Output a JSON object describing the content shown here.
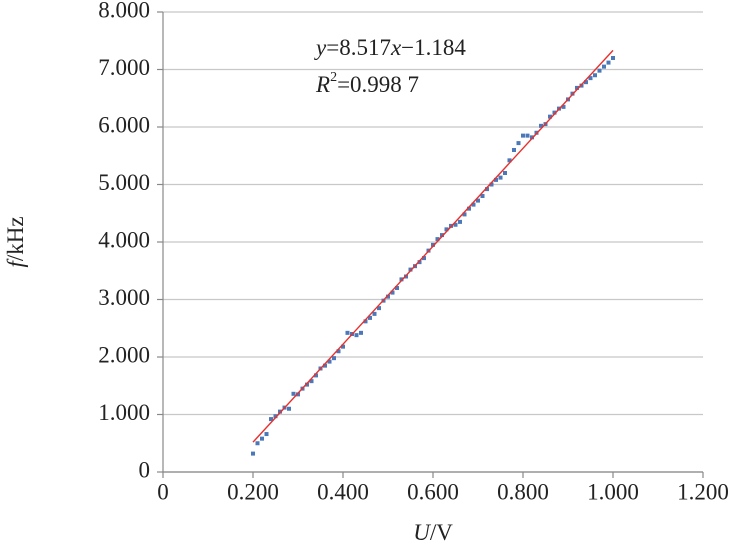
{
  "chart_data": {
    "type": "scatter",
    "x_label": {
      "italic": "U",
      "rest": "/V"
    },
    "y_label": {
      "italic": "f",
      "rest": "/kHz"
    },
    "equation": {
      "y": "y",
      "coef": "=8.517",
      "x": "x",
      "const": "−1.184"
    },
    "r_squared": {
      "r": "R",
      "sup": "2",
      "value": "=0.998 7"
    },
    "xlim": [
      0,
      1.2
    ],
    "ylim": [
      0,
      8
    ],
    "xticks": [
      0,
      {
        "value": 0.2,
        "label": "0.200"
      },
      {
        "value": 0.4,
        "label": "0.400"
      },
      {
        "value": 0.6,
        "label": "0.600"
      },
      {
        "value": 0.8,
        "label": "0.800"
      },
      {
        "value": 1.0,
        "label": "1.000"
      },
      {
        "value": 1.2,
        "label": "1.200"
      }
    ],
    "yticks": [
      0,
      {
        "value": 1,
        "label": "1.000"
      },
      {
        "value": 2,
        "label": "2.000"
      },
      {
        "value": 3,
        "label": "3.000"
      },
      {
        "value": 4,
        "label": "4.000"
      },
      {
        "value": 5,
        "label": "5.000"
      },
      {
        "value": 6,
        "label": "6.000"
      },
      {
        "value": 7,
        "label": "7.000"
      },
      {
        "value": 8,
        "label": "8.000"
      }
    ],
    "grid": true,
    "series": [
      {
        "color": "#4a78b8",
        "x": [
          0.2,
          0.21,
          0.22,
          0.23,
          0.24,
          0.25,
          0.26,
          0.27,
          0.28,
          0.29,
          0.3,
          0.31,
          0.32,
          0.33,
          0.34,
          0.35,
          0.36,
          0.37,
          0.38,
          0.39,
          0.4,
          0.41,
          0.42,
          0.43,
          0.44,
          0.45,
          0.46,
          0.47,
          0.48,
          0.49,
          0.5,
          0.51,
          0.52,
          0.53,
          0.54,
          0.55,
          0.56,
          0.57,
          0.58,
          0.59,
          0.6,
          0.61,
          0.62,
          0.63,
          0.64,
          0.65,
          0.66,
          0.67,
          0.68,
          0.69,
          0.7,
          0.71,
          0.72,
          0.73,
          0.74,
          0.75,
          0.76,
          0.77,
          0.78,
          0.79,
          0.8,
          0.81,
          0.82,
          0.83,
          0.84,
          0.85,
          0.86,
          0.87,
          0.88,
          0.89,
          0.9,
          0.91,
          0.92,
          0.93,
          0.94,
          0.95,
          0.96,
          0.97,
          0.98,
          0.99,
          1.0
        ],
        "values": [
          0.32,
          0.5,
          0.58,
          0.66,
          0.92,
          0.97,
          1.05,
          1.12,
          1.1,
          1.36,
          1.35,
          1.45,
          1.52,
          1.58,
          1.68,
          1.8,
          1.85,
          1.92,
          1.98,
          2.1,
          2.18,
          2.42,
          2.4,
          2.38,
          2.42,
          2.62,
          2.68,
          2.75,
          2.85,
          2.98,
          3.05,
          3.12,
          3.2,
          3.35,
          3.4,
          3.52,
          3.58,
          3.65,
          3.72,
          3.85,
          3.95,
          4.05,
          4.12,
          4.22,
          4.28,
          4.3,
          4.35,
          4.48,
          4.58,
          4.65,
          4.72,
          4.8,
          4.92,
          5.0,
          5.08,
          5.12,
          5.2,
          5.42,
          5.6,
          5.72,
          5.85,
          5.85,
          5.82,
          5.9,
          6.02,
          6.05,
          6.18,
          6.25,
          6.32,
          6.35,
          6.48,
          6.58,
          6.68,
          6.72,
          6.78,
          6.85,
          6.9,
          6.98,
          7.05,
          7.12,
          7.2
        ]
      }
    ],
    "trendline": {
      "color": "#e8302c",
      "x": [
        0.2,
        1.0
      ],
      "y": [
        0.519,
        7.333
      ]
    }
  }
}
